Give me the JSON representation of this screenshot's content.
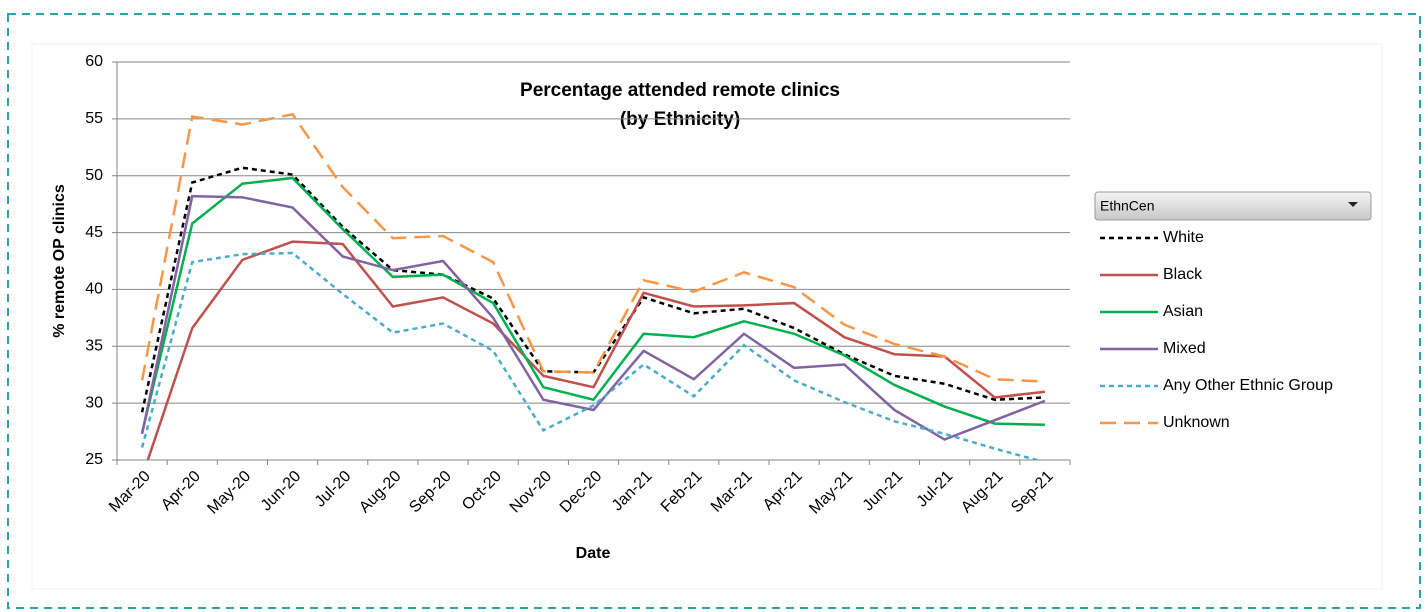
{
  "chart_data": {
    "type": "line",
    "title": "Percentage attended remote clinics",
    "subtitle": "(by Ethnicity)",
    "x_label": "Date",
    "y_label": "% remote OP clinics",
    "legend_title": "EthnCen",
    "categories": [
      "Mar-20",
      "Apr-20",
      "May-20",
      "Jun-20",
      "Jul-20",
      "Aug-20",
      "Sep-20",
      "Oct-20",
      "Nov-20",
      "Dec-20",
      "Jan-21",
      "Feb-21",
      "Mar-21",
      "Apr-21",
      "May-21",
      "Jun-21",
      "Jul-21",
      "Aug-21",
      "Sep-21"
    ],
    "ylim": [
      25,
      60
    ],
    "yticks": [
      25,
      30,
      35,
      40,
      45,
      50,
      55,
      60
    ],
    "grid": true,
    "legend": "right",
    "series": [
      {
        "name": "White",
        "color": "#000000",
        "dash": "dash",
        "values": [
          29.2,
          49.4,
          50.7,
          50.1,
          45.5,
          41.7,
          41.3,
          39.2,
          32.8,
          32.7,
          39.3,
          37.9,
          38.3,
          36.6,
          34.3,
          32.4,
          31.7,
          30.3,
          30.5
        ]
      },
      {
        "name": "Black",
        "color": "#c0504d",
        "dash": "solid",
        "values": [
          23.5,
          36.6,
          42.6,
          44.2,
          44.0,
          38.5,
          39.3,
          37.0,
          32.4,
          31.4,
          39.7,
          38.5,
          38.6,
          38.8,
          35.8,
          34.3,
          34.1,
          30.5,
          31.0
        ]
      },
      {
        "name": "Asian",
        "color": "#00b050",
        "dash": "solid",
        "values": [
          27.4,
          45.8,
          49.3,
          49.8,
          45.3,
          41.1,
          41.3,
          38.8,
          31.4,
          30.3,
          36.1,
          35.8,
          37.2,
          36.1,
          34.2,
          31.6,
          29.7,
          28.2,
          28.1
        ]
      },
      {
        "name": "Mixed",
        "color": "#8064a2",
        "dash": "solid",
        "values": [
          27.3,
          48.2,
          48.1,
          47.2,
          42.9,
          41.7,
          42.5,
          37.5,
          30.3,
          29.4,
          34.6,
          32.1,
          36.1,
          33.1,
          33.4,
          29.4,
          26.8,
          28.5,
          30.2
        ]
      },
      {
        "name": "Any Other Ethnic Group",
        "color": "#4bacc6",
        "dash": "dash",
        "values": [
          26.1,
          42.4,
          43.1,
          43.2,
          39.6,
          36.2,
          37.0,
          34.6,
          27.6,
          29.8,
          33.4,
          30.6,
          35.1,
          32.0,
          30.1,
          28.4,
          27.3,
          26.0,
          24.8
        ]
      },
      {
        "name": "Unknown",
        "color": "#f79646",
        "dash": "long-dash",
        "values": [
          32.0,
          55.2,
          54.5,
          55.4,
          49.0,
          44.5,
          44.7,
          42.4,
          32.8,
          32.7,
          40.8,
          39.8,
          41.5,
          40.2,
          36.9,
          35.2,
          34.1,
          32.1,
          31.9
        ]
      }
    ]
  }
}
